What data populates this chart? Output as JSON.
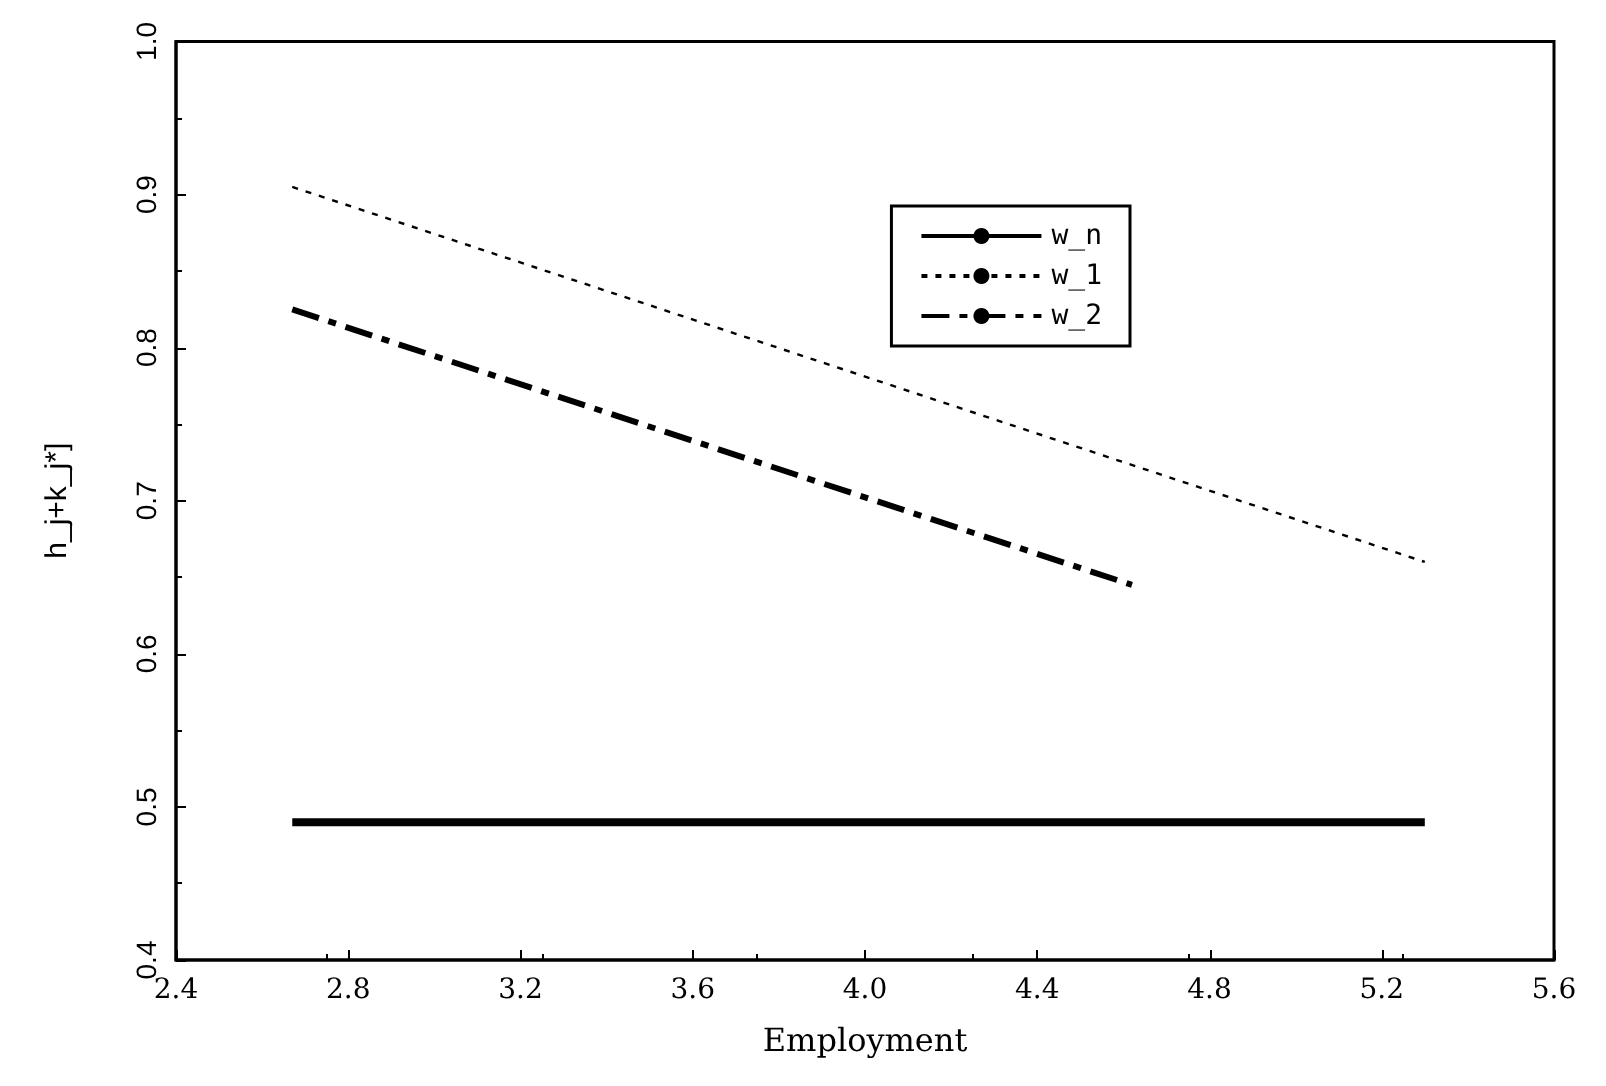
{
  "chart_data": {
    "type": "line",
    "xlabel": "Employment",
    "ylabel": "h_j+k_j*]",
    "xlim": [
      2.4,
      5.6
    ],
    "xticks": [
      2.4,
      2.8,
      3.2,
      3.6,
      {
        "value": 4,
        "label": "4.0"
      },
      4.4,
      4.8,
      5.2,
      5.6
    ],
    "ylim": [
      0.4,
      1.0
    ],
    "yticks": [
      0.4,
      0.5,
      0.6,
      0.7,
      0.8,
      0.9,
      {
        "value": 1,
        "label": "1.0"
      }
    ],
    "grid": false,
    "legend": "top right",
    "marker": "none",
    "series": [
      {
        "name": "w_n",
        "color": "#000000",
        "x": [
          2.67,
          5.3
        ],
        "values": [
          0.49,
          0.49
        ],
        "line_style": "solid"
      },
      {
        "name": "w_1",
        "color": "#000000",
        "x": [
          2.67,
          5.3
        ],
        "values": [
          0.905,
          0.66
        ],
        "line_style": "dotted"
      },
      {
        "name": "w_2",
        "color": "#000000",
        "x": [
          2.67,
          4.62
        ],
        "values": [
          0.825,
          0.645
        ],
        "line_style": "dashed"
      }
    ]
  }
}
